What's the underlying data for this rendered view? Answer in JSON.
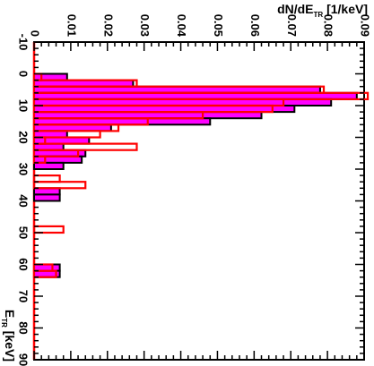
{
  "chart_data": {
    "type": "bar",
    "orientation": "horizontal-rotated",
    "xlabel": "E",
    "xlabel_sub": "TR",
    "xlabel_unit": " [keV]",
    "ylabel": "dN/dE",
    "ylabel_sub": "TR",
    "ylabel_unit": " [1/keV]",
    "xlim": [
      -10,
      90
    ],
    "ylim": [
      0,
      0.09
    ],
    "x_ticks": [
      -10,
      0,
      10,
      20,
      30,
      40,
      50,
      60,
      70,
      80,
      90
    ],
    "x_tick_labels": [
      "-10",
      "0",
      "10",
      "20",
      "30",
      "40",
      "50",
      "60",
      "70",
      "80",
      "90"
    ],
    "y_ticks": [
      0,
      0.01,
      0.02,
      0.03,
      0.04,
      0.05,
      0.06,
      0.07,
      0.08,
      0.09
    ],
    "y_tick_labels": [
      "0",
      "0.01",
      "0.02",
      "0.03",
      "0.04",
      "0.05",
      "0.06",
      "0.07",
      "0.08",
      "0.09"
    ],
    "bin_width": 2,
    "series": [
      {
        "color": "#ff00ff",
        "stroke": "#000000",
        "fill": true,
        "bins": [
          {
            "x": -2,
            "value": 0.0
          },
          {
            "x": 0,
            "value": 0.009
          },
          {
            "x": 2,
            "value": 0.027
          },
          {
            "x": 4,
            "value": 0.078
          },
          {
            "x": 6,
            "value": 0.088
          },
          {
            "x": 8,
            "value": 0.081
          },
          {
            "x": 10,
            "value": 0.071
          },
          {
            "x": 12,
            "value": 0.062
          },
          {
            "x": 14,
            "value": 0.048
          },
          {
            "x": 16,
            "value": 0.021
          },
          {
            "x": 18,
            "value": 0.009
          },
          {
            "x": 20,
            "value": 0.015
          },
          {
            "x": 22,
            "value": 0.008
          },
          {
            "x": 24,
            "value": 0.014
          },
          {
            "x": 26,
            "value": 0.013
          },
          {
            "x": 28,
            "value": 0.008
          },
          {
            "x": 30,
            "value": 0.0
          },
          {
            "x": 32,
            "value": 0.0
          },
          {
            "x": 34,
            "value": 0.0
          },
          {
            "x": 36,
            "value": 0.007
          },
          {
            "x": 38,
            "value": 0.007
          },
          {
            "x": 60,
            "value": 0.007
          },
          {
            "x": 62,
            "value": 0.007
          }
        ]
      },
      {
        "color": "#ff0000",
        "fill": false,
        "bins": [
          {
            "x": -2,
            "value": 0.0
          },
          {
            "x": 0,
            "value": 0.002
          },
          {
            "x": 2,
            "value": 0.028
          },
          {
            "x": 4,
            "value": 0.079
          },
          {
            "x": 6,
            "value": 0.091
          },
          {
            "x": 8,
            "value": 0.068
          },
          {
            "x": 10,
            "value": 0.065
          },
          {
            "x": 12,
            "value": 0.046
          },
          {
            "x": 14,
            "value": 0.031
          },
          {
            "x": 16,
            "value": 0.023
          },
          {
            "x": 18,
            "value": 0.018
          },
          {
            "x": 20,
            "value": 0.003
          },
          {
            "x": 22,
            "value": 0.028
          },
          {
            "x": 24,
            "value": 0.012
          },
          {
            "x": 26,
            "value": 0.003
          },
          {
            "x": 28,
            "value": 0.0
          },
          {
            "x": 30,
            "value": 0.0
          },
          {
            "x": 32,
            "value": 0.007
          },
          {
            "x": 34,
            "value": 0.014
          },
          {
            "x": 36,
            "value": 0.0
          },
          {
            "x": 48,
            "value": 0.008
          },
          {
            "x": 60,
            "value": 0.005
          },
          {
            "x": 62,
            "value": 0.006
          }
        ]
      }
    ]
  }
}
